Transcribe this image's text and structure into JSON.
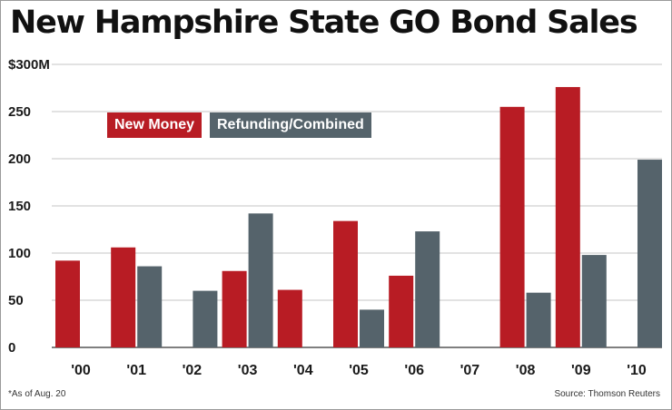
{
  "chart_data": {
    "type": "bar",
    "title": "New Hampshire State GO Bond Sales",
    "categories": [
      "'00",
      "'01",
      "'02",
      "'03",
      "'04",
      "'05",
      "'06",
      "'07",
      "'08",
      "'09",
      "'10"
    ],
    "series": [
      {
        "name": "New Money",
        "color": "#b81c24",
        "values": [
          92,
          106,
          0,
          81,
          61,
          134,
          76,
          0,
          255,
          276,
          0
        ]
      },
      {
        "name": "Refunding/Combined",
        "color": "#55636b",
        "values": [
          0,
          86,
          60,
          142,
          0,
          40,
          123,
          0,
          58,
          98,
          199
        ]
      }
    ],
    "y_ticks": [
      "0",
      "50",
      "100",
      "150",
      "200",
      "250",
      "$300M"
    ],
    "ylim": [
      0,
      300
    ],
    "grid": true,
    "legend": "top-left",
    "footnote": "*As of Aug. 20",
    "source": "Source: Thomson Reuters"
  }
}
